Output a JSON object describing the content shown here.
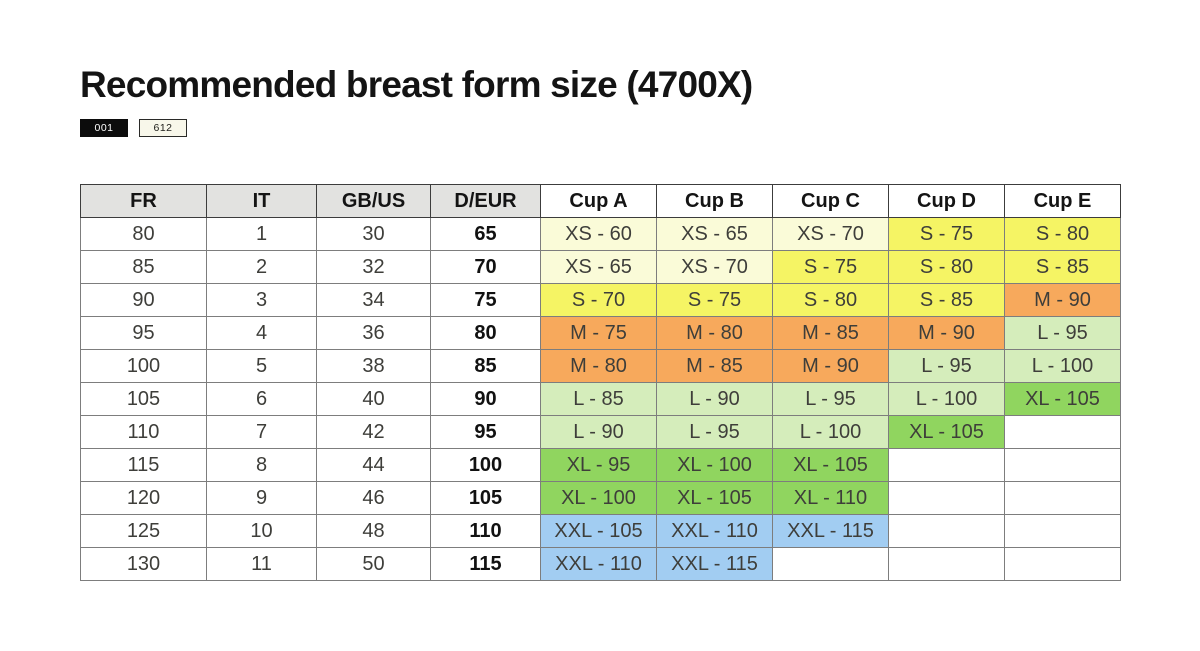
{
  "title": "Recommended breast form size (4700X)",
  "badges": [
    {
      "label": "001",
      "style": "dark"
    },
    {
      "label": "612",
      "style": "light"
    }
  ],
  "colors": {
    "cream": "#fafbd8",
    "yellow": "#f5f464",
    "orange": "#f7a95c",
    "lightgreen": "#d5edbb",
    "green": "#90d55f",
    "blue": "#a2cdf2",
    "empty": "#ffffff"
  },
  "table": {
    "headers": [
      "FR",
      "IT",
      "GB/US",
      "D/EUR",
      "Cup A",
      "Cup B",
      "Cup C",
      "Cup D",
      "Cup E"
    ],
    "rows": [
      {
        "fr": "80",
        "it": "1",
        "gbus": "30",
        "deur": "65",
        "cups": [
          {
            "text": "XS - 60",
            "color": "cream"
          },
          {
            "text": "XS - 65",
            "color": "cream"
          },
          {
            "text": "XS - 70",
            "color": "cream"
          },
          {
            "text": "S - 75",
            "color": "yellow"
          },
          {
            "text": "S - 80",
            "color": "yellow"
          }
        ]
      },
      {
        "fr": "85",
        "it": "2",
        "gbus": "32",
        "deur": "70",
        "cups": [
          {
            "text": "XS - 65",
            "color": "cream"
          },
          {
            "text": "XS - 70",
            "color": "cream"
          },
          {
            "text": "S - 75",
            "color": "yellow"
          },
          {
            "text": "S - 80",
            "color": "yellow"
          },
          {
            "text": "S - 85",
            "color": "yellow"
          }
        ]
      },
      {
        "fr": "90",
        "it": "3",
        "gbus": "34",
        "deur": "75",
        "cups": [
          {
            "text": "S - 70",
            "color": "yellow"
          },
          {
            "text": "S - 75",
            "color": "yellow"
          },
          {
            "text": "S - 80",
            "color": "yellow"
          },
          {
            "text": "S - 85",
            "color": "yellow"
          },
          {
            "text": "M - 90",
            "color": "orange"
          }
        ]
      },
      {
        "fr": "95",
        "it": "4",
        "gbus": "36",
        "deur": "80",
        "cups": [
          {
            "text": "M - 75",
            "color": "orange"
          },
          {
            "text": "M - 80",
            "color": "orange"
          },
          {
            "text": "M - 85",
            "color": "orange"
          },
          {
            "text": "M - 90",
            "color": "orange"
          },
          {
            "text": "L - 95",
            "color": "lightgreen"
          }
        ]
      },
      {
        "fr": "100",
        "it": "5",
        "gbus": "38",
        "deur": "85",
        "cups": [
          {
            "text": "M - 80",
            "color": "orange"
          },
          {
            "text": "M - 85",
            "color": "orange"
          },
          {
            "text": "M - 90",
            "color": "orange"
          },
          {
            "text": "L - 95",
            "color": "lightgreen"
          },
          {
            "text": "L - 100",
            "color": "lightgreen"
          }
        ]
      },
      {
        "fr": "105",
        "it": "6",
        "gbus": "40",
        "deur": "90",
        "cups": [
          {
            "text": "L - 85",
            "color": "lightgreen"
          },
          {
            "text": "L - 90",
            "color": "lightgreen"
          },
          {
            "text": "L - 95",
            "color": "lightgreen"
          },
          {
            "text": "L - 100",
            "color": "lightgreen"
          },
          {
            "text": "XL - 105",
            "color": "green"
          }
        ]
      },
      {
        "fr": "110",
        "it": "7",
        "gbus": "42",
        "deur": "95",
        "cups": [
          {
            "text": "L - 90",
            "color": "lightgreen"
          },
          {
            "text": "L - 95",
            "color": "lightgreen"
          },
          {
            "text": "L - 100",
            "color": "lightgreen"
          },
          {
            "text": "XL - 105",
            "color": "green"
          },
          {
            "text": "",
            "color": "empty"
          }
        ]
      },
      {
        "fr": "115",
        "it": "8",
        "gbus": "44",
        "deur": "100",
        "cups": [
          {
            "text": "XL - 95",
            "color": "green"
          },
          {
            "text": "XL - 100",
            "color": "green"
          },
          {
            "text": "XL - 105",
            "color": "green"
          },
          {
            "text": "",
            "color": "empty"
          },
          {
            "text": "",
            "color": "empty"
          }
        ]
      },
      {
        "fr": "120",
        "it": "9",
        "gbus": "46",
        "deur": "105",
        "cups": [
          {
            "text": "XL - 100",
            "color": "green"
          },
          {
            "text": "XL - 105",
            "color": "green"
          },
          {
            "text": "XL - 110",
            "color": "green"
          },
          {
            "text": "",
            "color": "empty"
          },
          {
            "text": "",
            "color": "empty"
          }
        ]
      },
      {
        "fr": "125",
        "it": "10",
        "gbus": "48",
        "deur": "110",
        "cups": [
          {
            "text": "XXL - 105",
            "color": "blue"
          },
          {
            "text": "XXL - 110",
            "color": "blue"
          },
          {
            "text": "XXL - 115",
            "color": "blue"
          },
          {
            "text": "",
            "color": "empty"
          },
          {
            "text": "",
            "color": "empty"
          }
        ]
      },
      {
        "fr": "130",
        "it": "11",
        "gbus": "50",
        "deur": "115",
        "cups": [
          {
            "text": "XXL - 110",
            "color": "blue"
          },
          {
            "text": "XXL - 115",
            "color": "blue"
          },
          {
            "text": "",
            "color": "empty"
          },
          {
            "text": "",
            "color": "empty"
          },
          {
            "text": "",
            "color": "empty"
          }
        ]
      }
    ]
  }
}
